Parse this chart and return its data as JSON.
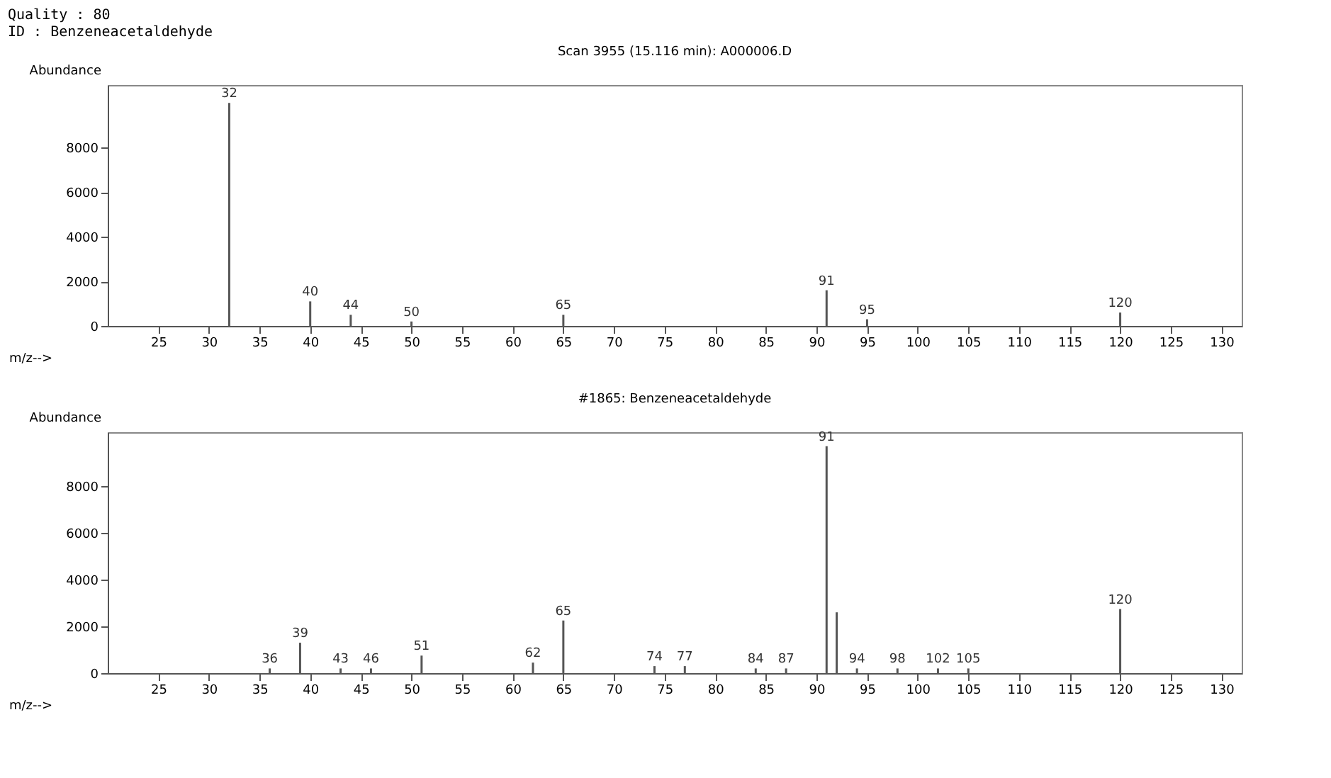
{
  "chart_data": [
    {
      "type": "bar",
      "title": "Scan 3955 (15.116 min): A000006.D",
      "ylabel": "Abundance",
      "xlabel": "m/z-->",
      "x": [
        32,
        40,
        44,
        50,
        65,
        91,
        95,
        120
      ],
      "series": [
        {
          "color": "#555555",
          "values": [
            10000,
            1100,
            500,
            200,
            500,
            1600,
            300,
            600
          ]
        }
      ],
      "annotations": [
        "Quality : 80",
        "ID : Benzeneacetaldehyde",
        {
          "text": "32",
          "x": 32,
          "y": 10000
        },
        {
          "text": "40",
          "x": 40,
          "y": 1100
        },
        {
          "text": "44",
          "x": 44,
          "y": 500
        },
        {
          "text": "50",
          "x": 50,
          "y": 200
        },
        {
          "text": "65",
          "x": 65,
          "y": 500
        },
        {
          "text": "91",
          "x": 91,
          "y": 1600
        },
        {
          "text": "95",
          "x": 95,
          "y": 300
        },
        {
          "text": "120",
          "x": 120,
          "y": 600
        }
      ],
      "xlim": [
        20,
        132
      ],
      "xticks": [
        25,
        30,
        35,
        40,
        45,
        50,
        55,
        60,
        65,
        70,
        75,
        80,
        85,
        90,
        95,
        100,
        105,
        110,
        115,
        120,
        125,
        130
      ],
      "ylim": [
        0,
        10800
      ],
      "yticks": [
        0,
        2000,
        4000,
        6000,
        8000
      ],
      "grid": false
    },
    {
      "type": "bar",
      "title": "#1865: Benzeneacetaldehyde",
      "ylabel": "Abundance",
      "xlabel": "m/z-->",
      "x": [
        36,
        39,
        43,
        46,
        51,
        62,
        65,
        74,
        77,
        84,
        87,
        91,
        92,
        94,
        98,
        102,
        105,
        120
      ],
      "series": [
        {
          "color": "#555555",
          "values": [
            200,
            1300,
            200,
            200,
            750,
            450,
            2250,
            300,
            300,
            200,
            200,
            9700,
            2600,
            200,
            200,
            200,
            200,
            2740
          ]
        }
      ],
      "annotations": [
        {
          "text": "36",
          "x": 36,
          "y": 200
        },
        {
          "text": "39",
          "x": 39,
          "y": 1300
        },
        {
          "text": "43",
          "x": 43,
          "y": 200
        },
        {
          "text": "46",
          "x": 46,
          "y": 200
        },
        {
          "text": "51",
          "x": 51,
          "y": 750
        },
        {
          "text": "62",
          "x": 62,
          "y": 450
        },
        {
          "text": "65",
          "x": 65,
          "y": 2250
        },
        {
          "text": "74",
          "x": 74,
          "y": 300
        },
        {
          "text": "77",
          "x": 77,
          "y": 300
        },
        {
          "text": "84",
          "x": 84,
          "y": 200
        },
        {
          "text": "87",
          "x": 87,
          "y": 200
        },
        {
          "text": "91",
          "x": 91,
          "y": 9700
        },
        {
          "text": "94",
          "x": 94,
          "y": 200
        },
        {
          "text": "98",
          "x": 98,
          "y": 200
        },
        {
          "text": "102",
          "x": 102,
          "y": 200
        },
        {
          "text": "105",
          "x": 105,
          "y": 200
        },
        {
          "text": "120",
          "x": 120,
          "y": 2740
        }
      ],
      "xlim": [
        20,
        132
      ],
      "xticks": [
        25,
        30,
        35,
        40,
        45,
        50,
        55,
        60,
        65,
        70,
        75,
        80,
        85,
        90,
        95,
        100,
        105,
        110,
        115,
        120,
        125,
        130
      ],
      "ylim": [
        0,
        10300
      ],
      "yticks": [
        0,
        2000,
        4000,
        6000,
        8000
      ],
      "grid": false
    }
  ]
}
